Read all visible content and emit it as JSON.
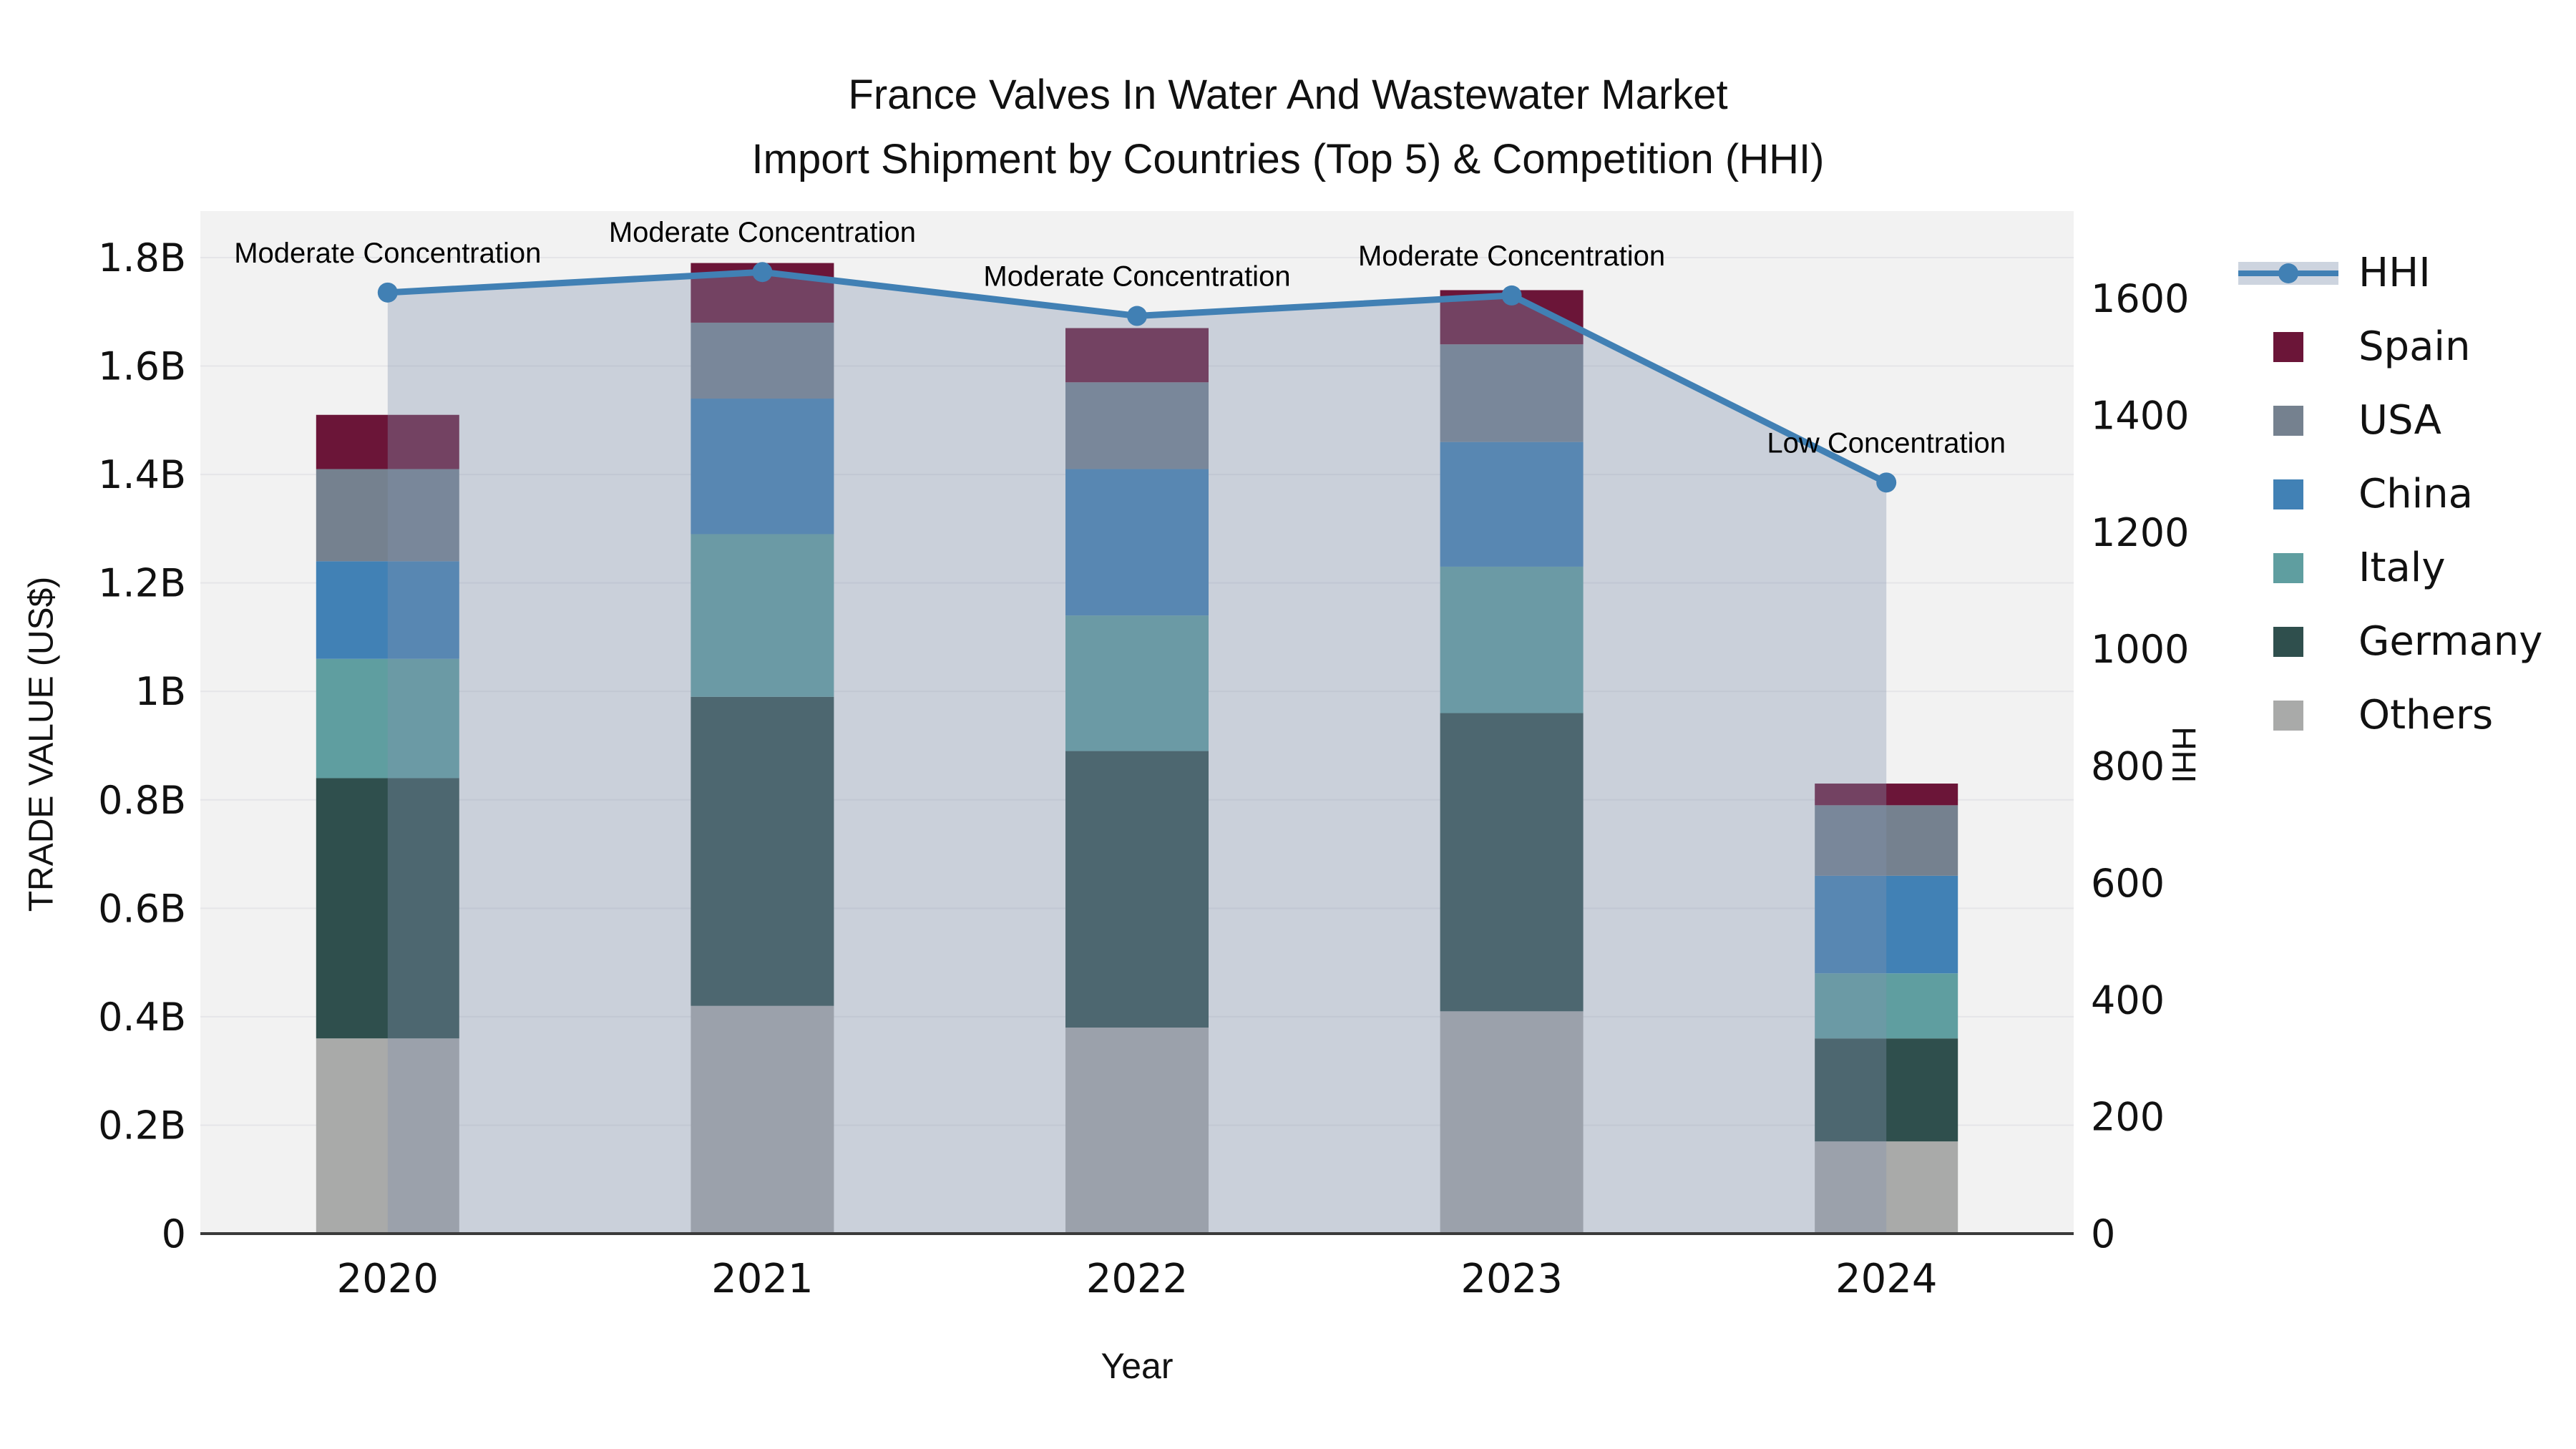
{
  "title": {
    "line1": "France Valves In Water And Wastewater Market",
    "line2": "Import Shipment by Countries (Top 5) & Competition (HHI)"
  },
  "axes": {
    "x_title": "Year",
    "y_left_title": "TRADE VALUE (US$)",
    "y_right_title": "HHI",
    "y_left_ticks": [
      "0",
      "0.2B",
      "0.4B",
      "0.6B",
      "0.8B",
      "1B",
      "1.2B",
      "1.4B",
      "1.6B",
      "1.8B"
    ],
    "y_right_ticks": [
      "0",
      "200",
      "400",
      "600",
      "800",
      "1000",
      "1200",
      "1400",
      "1600"
    ]
  },
  "legend": [
    {
      "label": "HHI",
      "type": "line",
      "color": "#4180b4"
    },
    {
      "label": "Spain",
      "type": "swatch",
      "color": "#6b1538"
    },
    {
      "label": "USA",
      "type": "swatch",
      "color": "#75818f"
    },
    {
      "label": "China",
      "type": "swatch",
      "color": "#4181b5"
    },
    {
      "label": "Italy",
      "type": "swatch",
      "color": "#5f9ea0"
    },
    {
      "label": "Germany",
      "type": "swatch",
      "color": "#2f4f4d"
    },
    {
      "label": "Others",
      "type": "swatch",
      "color": "#a9aaa9"
    }
  ],
  "chart_data": {
    "type": "bar+line",
    "subtype": "stacked bars with secondary-axis line and area fill",
    "categories": [
      "2020",
      "2021",
      "2022",
      "2023",
      "2024"
    ],
    "stack_order_bottom_to_top": [
      "Others",
      "Germany",
      "Italy",
      "China",
      "USA",
      "Spain"
    ],
    "series": [
      {
        "name": "Others",
        "color": "#a9aaa9",
        "values": [
          0.36,
          0.42,
          0.38,
          0.41,
          0.17
        ]
      },
      {
        "name": "Germany",
        "color": "#2f4f4d",
        "values": [
          0.48,
          0.57,
          0.51,
          0.55,
          0.19
        ]
      },
      {
        "name": "Italy",
        "color": "#5f9ea0",
        "values": [
          0.22,
          0.3,
          0.25,
          0.27,
          0.12
        ]
      },
      {
        "name": "China",
        "color": "#4181b5",
        "values": [
          0.18,
          0.25,
          0.27,
          0.23,
          0.18
        ]
      },
      {
        "name": "USA",
        "color": "#75818f",
        "values": [
          0.17,
          0.14,
          0.16,
          0.18,
          0.13
        ]
      },
      {
        "name": "Spain",
        "color": "#6b1538",
        "values": [
          0.1,
          0.11,
          0.1,
          0.1,
          0.04
        ]
      }
    ],
    "bar_totals_bill；approx": [
      1.51,
      1.79,
      1.67,
      1.74,
      0.83
    ],
    "line_series": {
      "name": "HHI",
      "color": "#4180b4",
      "area_fill": "rgba(130,148,175,0.36)",
      "values": [
        1610,
        1645,
        1570,
        1605,
        1285
      ]
    },
    "annotations": [
      {
        "x": "2020",
        "text": "Moderate Concentration"
      },
      {
        "x": "2021",
        "text": "Moderate Concentration"
      },
      {
        "x": "2022",
        "text": "Moderate Concentration"
      },
      {
        "x": "2023",
        "text": "Moderate Concentration"
      },
      {
        "x": "2024",
        "text": "Low Concentration"
      }
    ],
    "units_left": "US$ billions",
    "units_right": "HHI index points",
    "ylim_left": [
      0,
      1.886
    ],
    "ylim_right": [
      0,
      1750
    ],
    "grid": "horizontal",
    "legend_position": "right-top",
    "plot_bg": "#f2f2f2"
  }
}
